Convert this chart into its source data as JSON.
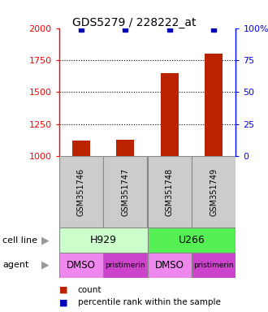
{
  "title": "GDS5279 / 228222_at",
  "samples": [
    "GSM351746",
    "GSM351747",
    "GSM351748",
    "GSM351749"
  ],
  "counts": [
    1120,
    1130,
    1650,
    1800
  ],
  "percentiles": [
    99,
    99,
    99,
    99
  ],
  "ylim_left": [
    1000,
    2000
  ],
  "ylim_right": [
    0,
    100
  ],
  "yticks_left": [
    1000,
    1250,
    1500,
    1750,
    2000
  ],
  "yticks_right": [
    0,
    25,
    50,
    75,
    100
  ],
  "ytick_right_labels": [
    "0",
    "25",
    "50",
    "75",
    "100%"
  ],
  "bar_color": "#bb2200",
  "percentile_color": "#0000bb",
  "cell_line_colors": {
    "H929": "#ccffcc",
    "U266": "#55ee55"
  },
  "agents": [
    "DMSO",
    "pristimerin",
    "DMSO",
    "pristimerin"
  ],
  "agent_colors": [
    "#ee88ee",
    "#cc44cc",
    "#ee88ee",
    "#cc44cc"
  ],
  "cell_groups": [
    [
      "H929",
      0,
      2
    ],
    [
      "U266",
      2,
      4
    ]
  ],
  "cell_line_label": "cell line",
  "agent_label": "agent",
  "legend_count": "count",
  "legend_percentile": "percentile rank within the sample",
  "sample_box_color": "#cccccc",
  "gridline_values": [
    1250,
    1500,
    1750
  ]
}
